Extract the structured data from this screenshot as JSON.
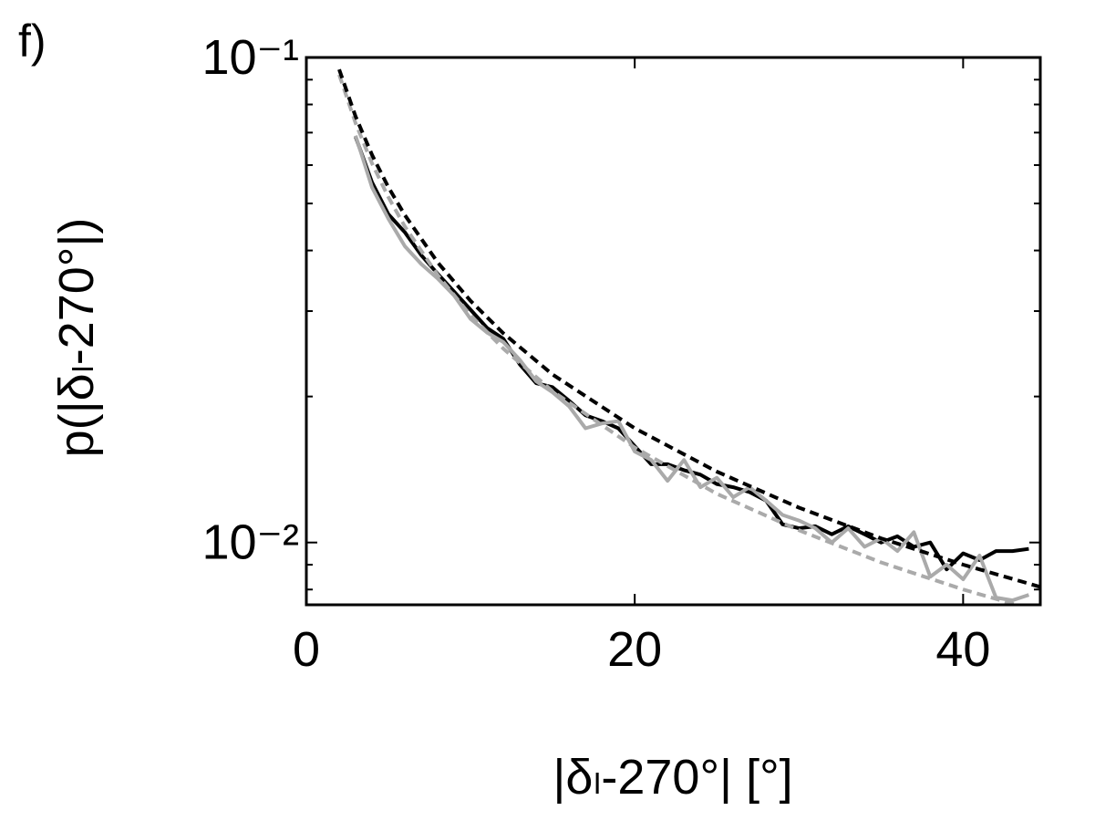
{
  "chart_data": {
    "type": "line",
    "panel_label": "f)",
    "xlabel": "|δₗ-270°| [°]",
    "ylabel": "p(|δₗ-270°|)",
    "xlim": [
      0,
      44.7
    ],
    "xticks": [
      0,
      20,
      40
    ],
    "ylim": [
      0.00744,
      0.1
    ],
    "yscale": "log",
    "yticks": [
      {
        "value": 0.1,
        "label": "10⁻¹"
      },
      {
        "value": 0.01,
        "label": "10⁻²"
      }
    ],
    "yminorticks": [
      0.008,
      0.009,
      0.02,
      0.03,
      0.04,
      0.05,
      0.06,
      0.07,
      0.08,
      0.09
    ],
    "series": [
      {
        "color": "#000000",
        "dash": false,
        "x": [
          3,
          4,
          5,
          6,
          7,
          8,
          9,
          10,
          11,
          12,
          13,
          14,
          15,
          16,
          17,
          18,
          19,
          20,
          21,
          22,
          23,
          24,
          25,
          26,
          27,
          28,
          29,
          30,
          31,
          32,
          33,
          34,
          35,
          36,
          37,
          38,
          39,
          40,
          41,
          42,
          43,
          44
        ],
        "values": [
          0.0686,
          0.0553,
          0.0475,
          0.0436,
          0.0391,
          0.0358,
          0.0329,
          0.0302,
          0.0277,
          0.0263,
          0.0233,
          0.0213,
          0.0209,
          0.0196,
          0.0183,
          0.0178,
          0.0172,
          0.0158,
          0.0145,
          0.0145,
          0.0141,
          0.0138,
          0.0132,
          0.013,
          0.0127,
          0.0122,
          0.0109,
          0.0107,
          0.0108,
          0.0104,
          0.0108,
          0.0104,
          0.01,
          0.0103,
          0.0098,
          0.01,
          0.0088,
          0.0095,
          0.0092,
          0.0096,
          0.0096,
          0.0097
        ]
      },
      {
        "color": "#aaaaaa",
        "dash": false,
        "x": [
          3,
          4,
          5,
          6,
          7,
          8,
          9,
          10,
          11,
          12,
          13,
          14,
          15,
          16,
          17,
          18,
          19,
          20,
          21,
          22,
          23,
          24,
          25,
          26,
          27,
          28,
          29,
          30,
          31,
          32,
          33,
          34,
          35,
          36,
          37,
          38,
          39,
          40,
          41,
          42,
          43,
          44
        ],
        "values": [
          0.069,
          0.054,
          0.0465,
          0.0408,
          0.0375,
          0.035,
          0.0323,
          0.0289,
          0.0271,
          0.0259,
          0.0238,
          0.0215,
          0.0204,
          0.0191,
          0.0172,
          0.0176,
          0.0178,
          0.0154,
          0.0148,
          0.0134,
          0.0148,
          0.013,
          0.0136,
          0.0124,
          0.013,
          0.0122,
          0.0114,
          0.0111,
          0.0107,
          0.01,
          0.0107,
          0.0098,
          0.0102,
          0.0096,
          0.0105,
          0.0085,
          0.009,
          0.0084,
          0.0094,
          0.0077,
          0.0076,
          0.0078
        ]
      },
      {
        "color": "#aaaaaa",
        "dash": true,
        "x": [
          2,
          3,
          4,
          5,
          6,
          8,
          10,
          12,
          15,
          20,
          25,
          30,
          35,
          40,
          44.7
        ],
        "values": [
          0.0922,
          0.0732,
          0.0605,
          0.0515,
          0.0448,
          0.0356,
          0.0294,
          0.0251,
          0.0205,
          0.0157,
          0.0126,
          0.0106,
          0.0091,
          0.008,
          0.0072
        ]
      },
      {
        "color": "#000000",
        "dash": true,
        "x": [
          2,
          3,
          4,
          5,
          6,
          8,
          10,
          12,
          15,
          20,
          25,
          30,
          35,
          40,
          44.7
        ],
        "values": [
          0.0945,
          0.0756,
          0.063,
          0.054,
          0.0473,
          0.0378,
          0.0315,
          0.027,
          0.0222,
          0.0172,
          0.014,
          0.0118,
          0.0102,
          0.009,
          0.0081
        ]
      }
    ]
  }
}
